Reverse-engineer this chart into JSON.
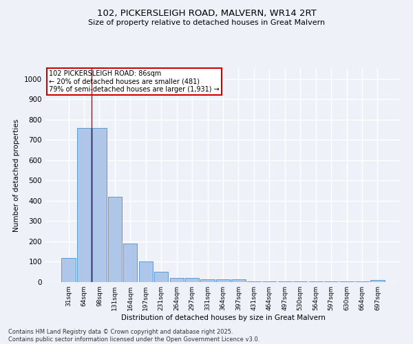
{
  "title1": "102, PICKERSLEIGH ROAD, MALVERN, WR14 2RT",
  "title2": "Size of property relative to detached houses in Great Malvern",
  "xlabel": "Distribution of detached houses by size in Great Malvern",
  "ylabel": "Number of detached properties",
  "categories": [
    "31sqm",
    "64sqm",
    "98sqm",
    "131sqm",
    "164sqm",
    "197sqm",
    "231sqm",
    "264sqm",
    "297sqm",
    "331sqm",
    "364sqm",
    "397sqm",
    "431sqm",
    "464sqm",
    "497sqm",
    "530sqm",
    "564sqm",
    "597sqm",
    "630sqm",
    "664sqm",
    "697sqm"
  ],
  "values": [
    120,
    760,
    760,
    420,
    190,
    100,
    50,
    20,
    20,
    15,
    15,
    15,
    2,
    2,
    2,
    2,
    2,
    2,
    2,
    2,
    10
  ],
  "bar_color": "#aec6e8",
  "bar_edge_color": "#5b9bd5",
  "vline_x": 1.5,
  "vline_color": "#cc0000",
  "annotation_title": "102 PICKERSLEIGH ROAD: 86sqm",
  "annotation_line2": "← 20% of detached houses are smaller (481)",
  "annotation_line3": "79% of semi-detached houses are larger (1,931) →",
  "annotation_box_color": "#cc0000",
  "ylim": [
    0,
    1050
  ],
  "yticks": [
    0,
    100,
    200,
    300,
    400,
    500,
    600,
    700,
    800,
    900,
    1000
  ],
  "footer1": "Contains HM Land Registry data © Crown copyright and database right 2025.",
  "footer2": "Contains public sector information licensed under the Open Government Licence v3.0.",
  "bg_color": "#eef2f8",
  "grid_color": "#ffffff"
}
